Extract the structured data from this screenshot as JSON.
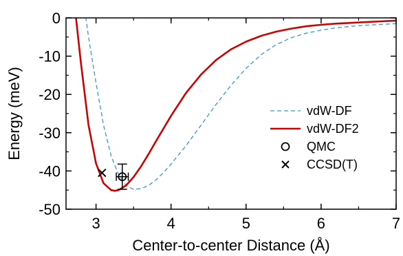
{
  "chart_data": {
    "type": "line",
    "title": "",
    "xlabel": "Center-to-center Distance (Å)",
    "ylabel": "Energy (meV)",
    "xlim": [
      2.6,
      7.0
    ],
    "ylim": [
      -50,
      0
    ],
    "xticks": [
      3,
      4,
      5,
      6,
      7
    ],
    "yticks": [
      0,
      -10,
      -20,
      -30,
      -40,
      -50
    ],
    "x_tick_labels": [
      "3",
      "4",
      "5",
      "6",
      "7"
    ],
    "y_tick_labels": [
      "0",
      "-10",
      "-20",
      "-30",
      "-40",
      "-50"
    ],
    "grid": false,
    "legend_position": "right",
    "series": [
      {
        "name": "vdW-DF",
        "kind": "line",
        "style": "dashed",
        "color": "#3399cc",
        "x": [
          2.85,
          2.9,
          3.0,
          3.1,
          3.2,
          3.3,
          3.4,
          3.5,
          3.6,
          3.7,
          3.8,
          3.9,
          4.0,
          4.2,
          4.4,
          4.6,
          4.8,
          5.0,
          5.2,
          5.4,
          5.6,
          5.8,
          6.0,
          6.2,
          6.4,
          6.6,
          6.8,
          7.0
        ],
        "y": [
          2.0,
          -5.0,
          -17.0,
          -28.0,
          -36.0,
          -41.0,
          -43.8,
          -44.8,
          -44.6,
          -43.8,
          -42.3,
          -40.4,
          -38.2,
          -33.4,
          -28.0,
          -22.6,
          -17.6,
          -13.2,
          -9.6,
          -7.0,
          -5.2,
          -4.0,
          -3.2,
          -2.6,
          -2.2,
          -1.9,
          -1.7,
          -1.5
        ]
      },
      {
        "name": "vdW-DF2",
        "kind": "line",
        "style": "solid",
        "color": "#cc0000",
        "x": [
          2.73,
          2.8,
          2.9,
          3.0,
          3.1,
          3.2,
          3.25,
          3.3,
          3.4,
          3.5,
          3.6,
          3.7,
          3.8,
          4.0,
          4.2,
          4.4,
          4.6,
          4.8,
          5.0,
          5.2,
          5.4,
          5.6,
          5.8,
          6.0,
          6.2,
          6.4,
          6.6,
          6.8,
          7.0
        ],
        "y": [
          0.5,
          -12.0,
          -28.0,
          -38.0,
          -43.2,
          -45.0,
          -45.2,
          -45.0,
          -43.8,
          -41.6,
          -38.8,
          -35.6,
          -32.2,
          -25.6,
          -19.6,
          -14.8,
          -11.0,
          -8.2,
          -6.2,
          -4.7,
          -3.6,
          -2.8,
          -2.2,
          -1.8,
          -1.5,
          -1.3,
          -1.1,
          -0.9,
          -0.7
        ]
      },
      {
        "name": "QMC",
        "kind": "marker",
        "marker": "circle",
        "color": "#000000",
        "x": [
          3.35
        ],
        "y": [
          -41.5
        ],
        "y_err": [
          3.3
        ],
        "x_err": [
          0.08
        ]
      },
      {
        "name": "CCSD(T)",
        "kind": "marker",
        "marker": "x",
        "color": "#000000",
        "x": [
          3.08
        ],
        "y": [
          -40.5
        ]
      }
    ]
  }
}
